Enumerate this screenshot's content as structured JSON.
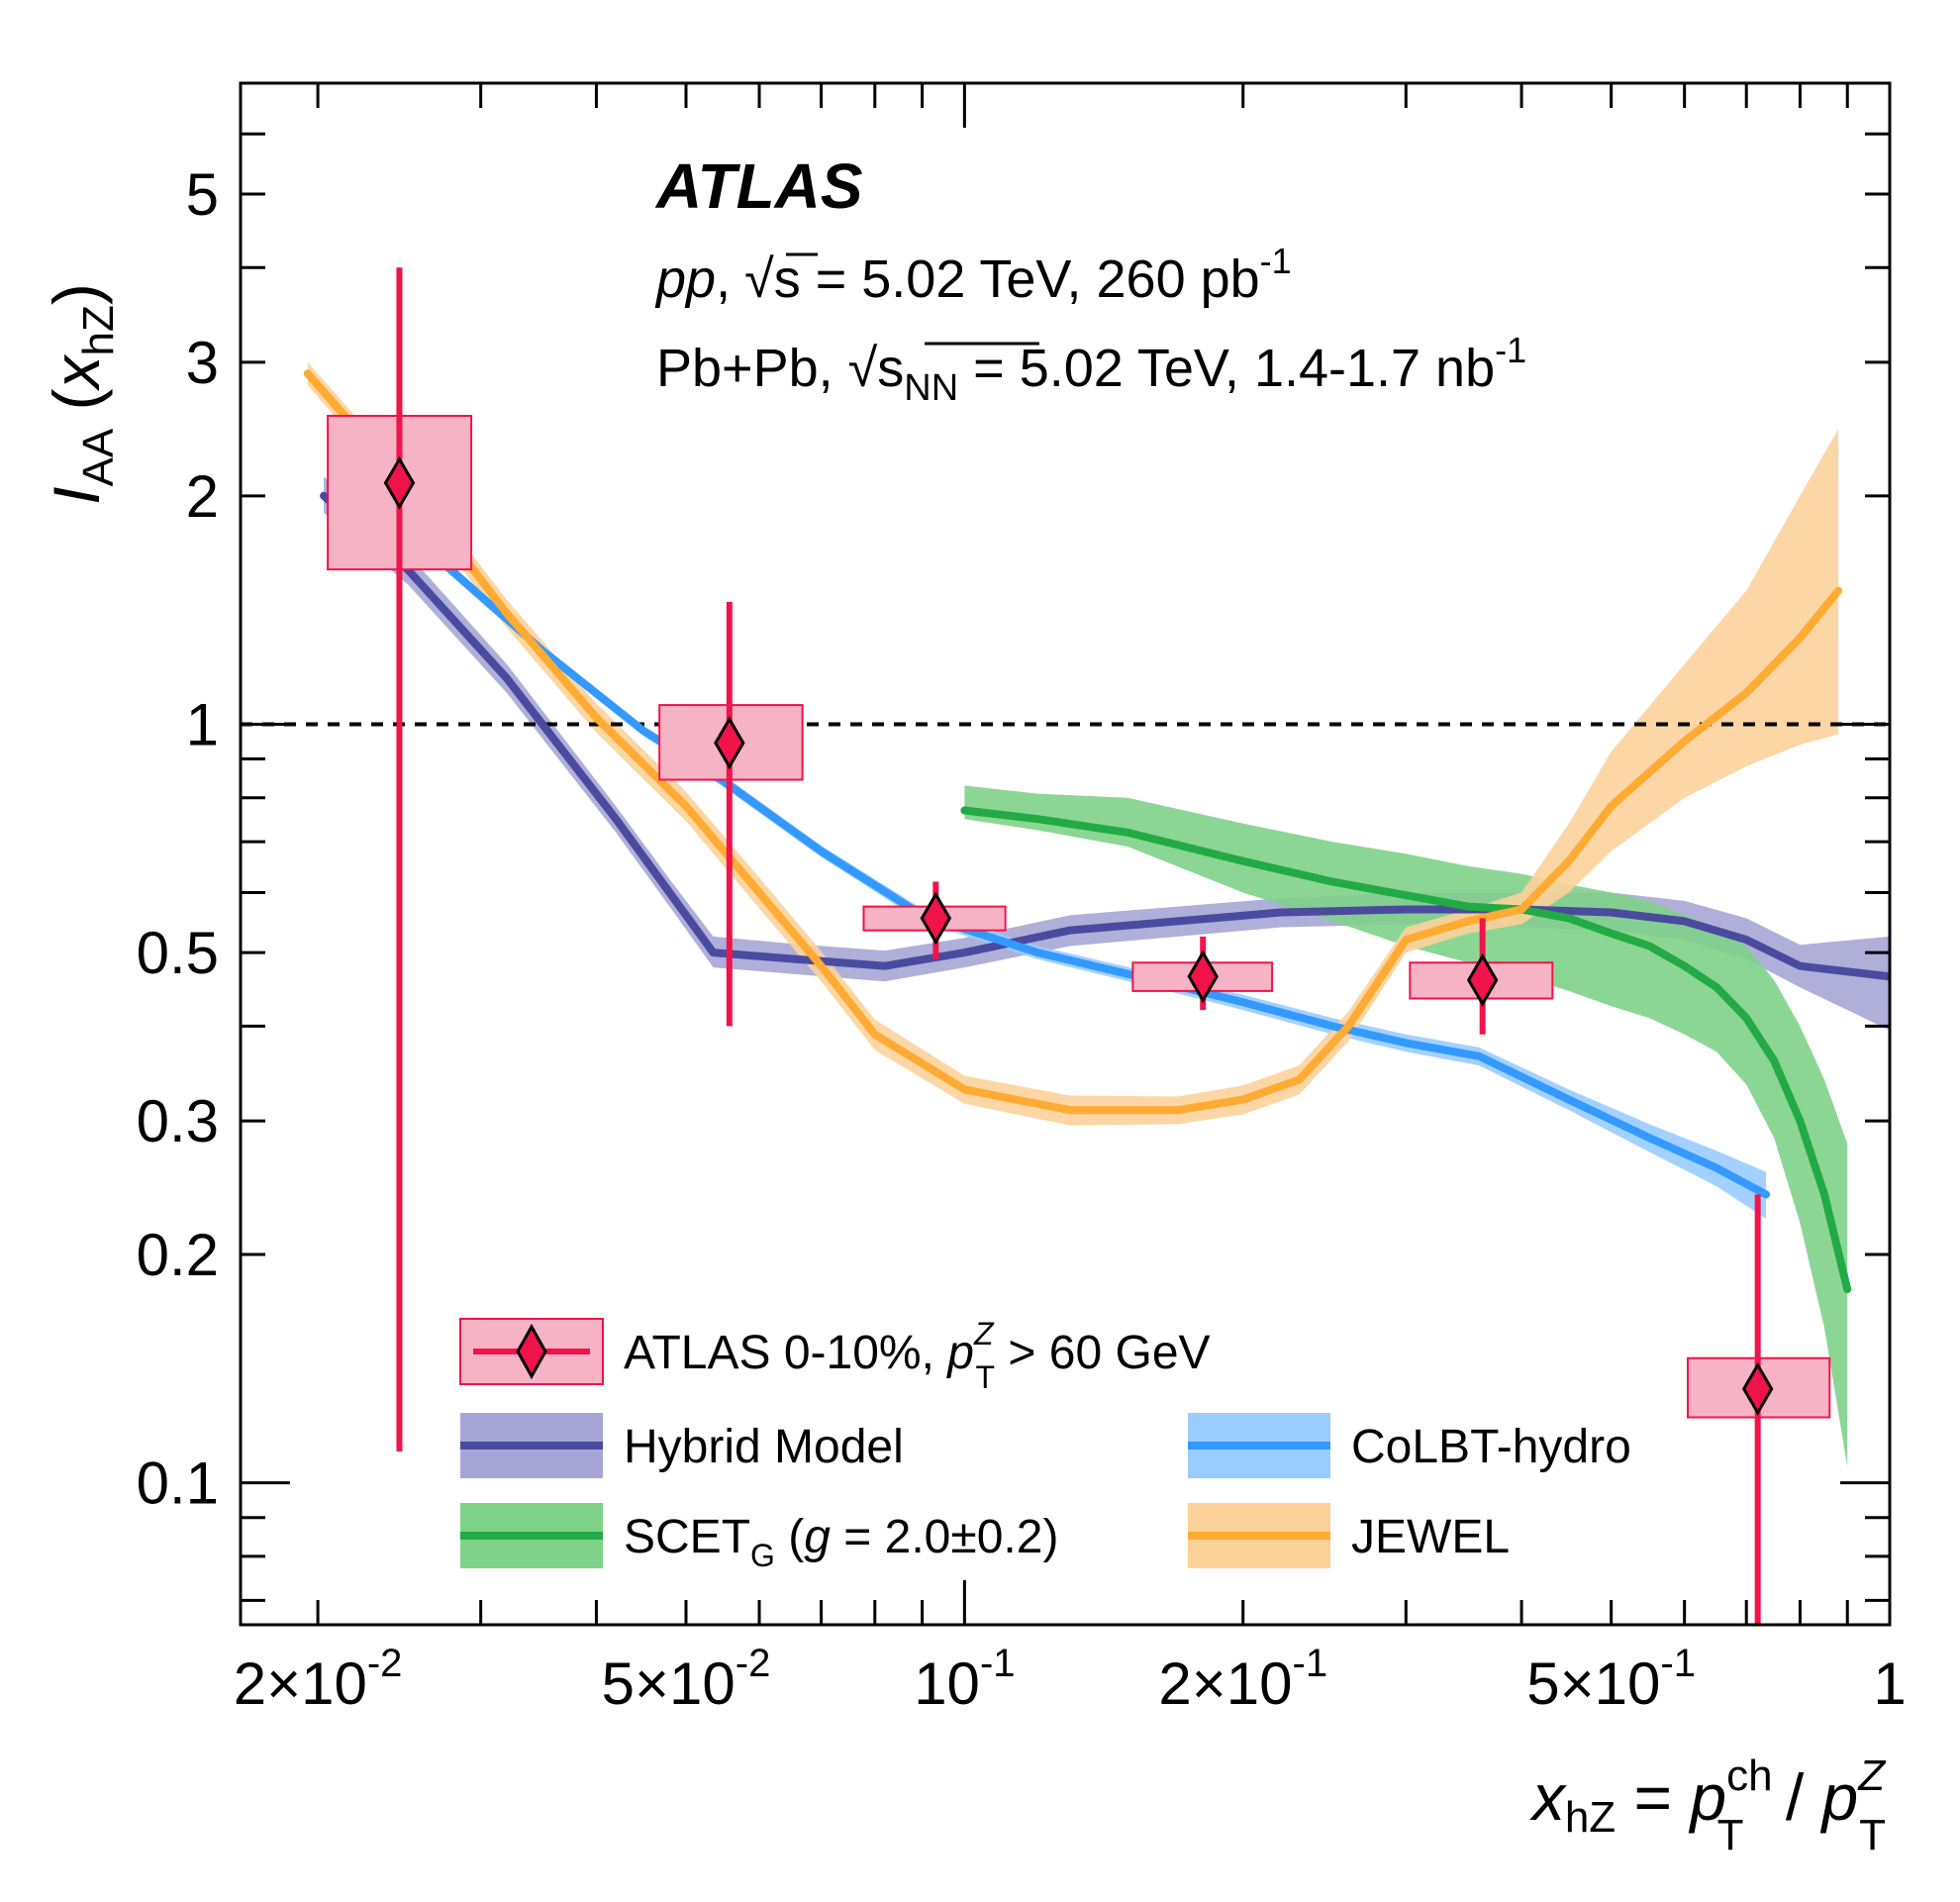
{
  "colors": {
    "atlas_point": "#f0144a",
    "atlas_box_fill": "#f7b3c6",
    "hybrid_line": "#4a4a9e",
    "hybrid_band": "#a6a6d6",
    "colbt_line": "#3399ff",
    "colbt_band": "#99ccff",
    "scet_line": "#22aa44",
    "scet_band": "#7fd28a",
    "jewel_line": "#ffaa33",
    "jewel_band": "#fcd29a"
  },
  "chart_data": {
    "type": "line",
    "x_scale": "log",
    "y_scale": "log",
    "xlim": [
      0.0165,
      1.0
    ],
    "ylim": [
      0.065,
      7.0
    ],
    "x_ticks": [
      {
        "value": 0.02,
        "label_main": "2×10",
        "label_sup": "-2"
      },
      {
        "value": 0.05,
        "label_main": "5×10",
        "label_sup": "-2"
      },
      {
        "value": 0.1,
        "label_main": "10",
        "label_sup": "-1"
      },
      {
        "value": 0.2,
        "label_main": "2×10",
        "label_sup": "-1"
      },
      {
        "value": 0.5,
        "label_main": "5×10",
        "label_sup": "-1"
      },
      {
        "value": 1.0,
        "label_main": "1",
        "label_sup": ""
      }
    ],
    "y_ticks": [
      {
        "value": 0.1,
        "label": "0.1"
      },
      {
        "value": 0.2,
        "label": "0.2"
      },
      {
        "value": 0.3,
        "label": "0.3"
      },
      {
        "value": 0.5,
        "label": "0.5"
      },
      {
        "value": 1,
        "label": "1"
      },
      {
        "value": 2,
        "label": "2"
      },
      {
        "value": 3,
        "label": "3"
      },
      {
        "value": 5,
        "label": "5"
      }
    ],
    "reference_line": {
      "y": 1.0,
      "style": "dashed"
    },
    "xlabel": {
      "x": "x",
      "x_sub": "hZ",
      "eq": " = ",
      "p": "p",
      "p_sub": "T",
      "p_sup": "ch",
      "slash": " / ",
      "p2": "p",
      "p2_sub": "T",
      "p2_sup": "Z"
    },
    "ylabel": {
      "I": "I",
      "I_sub": "AA",
      "open": " (",
      "x": "x",
      "x_sub": "hZ",
      "close": ")"
    },
    "annotations": {
      "experiment": "ATLAS",
      "line1": {
        "pp": "pp",
        "comma": ",",
        "s": "s",
        "rest": " = 5.02 TeV, 260 pb",
        "sup": "-1"
      },
      "line2": {
        "start": "Pb+Pb, ",
        "s": "s",
        "s_sub": "NN",
        "rest": " = 5.02 TeV, 1.4-1.7 nb",
        "sup": "-1"
      }
    },
    "atlas_data": [
      {
        "x": 0.0245,
        "y": 2.08,
        "y_low": 0.11,
        "y_high": 4.0,
        "sys_low": 1.6,
        "sys_high": 2.55,
        "x_low": 0.0205,
        "x_high": 0.0293
      },
      {
        "x": 0.0557,
        "y": 0.945,
        "y_low": 0.4,
        "y_high": 1.45,
        "sys_low": 0.845,
        "sys_high": 1.06,
        "x_low": 0.0468,
        "x_high": 0.0668
      },
      {
        "x": 0.0931,
        "y": 0.555,
        "y_low": 0.49,
        "y_high": 0.62,
        "sys_low": 0.535,
        "sys_high": 0.575,
        "x_low": 0.0778,
        "x_high": 0.1107
      },
      {
        "x": 0.181,
        "y": 0.465,
        "y_low": 0.42,
        "y_high": 0.525,
        "sys_low": 0.445,
        "sys_high": 0.485,
        "x_low": 0.152,
        "x_high": 0.215
      },
      {
        "x": 0.363,
        "y": 0.46,
        "y_low": 0.39,
        "y_high": 0.555,
        "sys_low": 0.435,
        "sys_high": 0.485,
        "x_low": 0.303,
        "x_high": 0.432
      },
      {
        "x": 0.72,
        "y": 0.133,
        "y_low": 0.065,
        "y_high": 0.24,
        "sys_low": 0.122,
        "sys_high": 0.146,
        "x_low": 0.605,
        "x_high": 0.861
      }
    ],
    "series": [
      {
        "name": "Hybrid Model",
        "key": "hybrid",
        "x": [
          0.0203,
          0.025,
          0.032,
          0.042,
          0.048,
          0.0535,
          0.066,
          0.082,
          0.1,
          0.13,
          0.17,
          0.22,
          0.3,
          0.4,
          0.5,
          0.6,
          0.7,
          0.8,
          1.0
        ],
        "y": [
          2.0,
          1.6,
          1.15,
          0.75,
          0.6,
          0.5,
          0.49,
          0.48,
          0.5,
          0.535,
          0.55,
          0.565,
          0.57,
          0.57,
          0.565,
          0.55,
          0.52,
          0.48,
          0.465
        ],
        "band_low": [
          1.9,
          1.53,
          1.1,
          0.72,
          0.575,
          0.478,
          0.468,
          0.458,
          0.478,
          0.51,
          0.525,
          0.54,
          0.545,
          0.54,
          0.535,
          0.52,
          0.49,
          0.45,
          0.395
        ],
        "band_high": [
          2.12,
          1.68,
          1.2,
          0.78,
          0.625,
          0.525,
          0.513,
          0.503,
          0.523,
          0.56,
          0.575,
          0.59,
          0.6,
          0.6,
          0.6,
          0.585,
          0.555,
          0.512,
          0.525
        ]
      },
      {
        "name": "CoLBT-hydro",
        "key": "colbt",
        "x": [
          0.026,
          0.035,
          0.045,
          0.055,
          0.07,
          0.09,
          0.12,
          0.16,
          0.2,
          0.25,
          0.3,
          0.36,
          0.45,
          0.55,
          0.65,
          0.735
        ],
        "y": [
          1.72,
          1.25,
          0.98,
          0.84,
          0.68,
          0.56,
          0.5,
          0.46,
          0.43,
          0.4,
          0.38,
          0.365,
          0.32,
          0.285,
          0.26,
          0.24
        ],
        "band_low": [
          1.69,
          1.23,
          0.965,
          0.825,
          0.668,
          0.549,
          0.49,
          0.45,
          0.42,
          0.39,
          0.37,
          0.355,
          0.31,
          0.273,
          0.246,
          0.223
        ],
        "band_high": [
          1.75,
          1.27,
          0.995,
          0.855,
          0.692,
          0.571,
          0.51,
          0.47,
          0.44,
          0.41,
          0.39,
          0.375,
          0.33,
          0.297,
          0.274,
          0.257
        ]
      },
      {
        "name": "SCET",
        "name_sub": "G",
        "name_suffix": " (",
        "name_g": "g",
        "name_val": " = 2.0±0.2)",
        "key": "scet",
        "x": [
          0.1,
          0.12,
          0.15,
          0.2,
          0.25,
          0.3,
          0.35,
          0.4,
          0.45,
          0.5,
          0.55,
          0.6,
          0.65,
          0.7,
          0.75,
          0.8,
          0.85,
          0.9
        ],
        "y": [
          0.77,
          0.75,
          0.72,
          0.66,
          0.62,
          0.595,
          0.575,
          0.57,
          0.555,
          0.53,
          0.51,
          0.48,
          0.45,
          0.41,
          0.36,
          0.3,
          0.24,
          0.18
        ],
        "band_low": [
          0.75,
          0.725,
          0.69,
          0.6,
          0.55,
          0.51,
          0.485,
          0.465,
          0.445,
          0.425,
          0.41,
          0.39,
          0.37,
          0.335,
          0.285,
          0.22,
          0.16,
          0.105
        ],
        "band_high": [
          0.83,
          0.81,
          0.8,
          0.74,
          0.7,
          0.675,
          0.65,
          0.635,
          0.615,
          0.6,
          0.585,
          0.56,
          0.54,
          0.51,
          0.46,
          0.4,
          0.34,
          0.28
        ]
      },
      {
        "name": "JEWEL",
        "key": "jewel",
        "x": [
          0.0195,
          0.022,
          0.026,
          0.032,
          0.04,
          0.05,
          0.06,
          0.07,
          0.08,
          0.1,
          0.13,
          0.17,
          0.2,
          0.23,
          0.26,
          0.3,
          0.35,
          0.4,
          0.45,
          0.5,
          0.6,
          0.7,
          0.8,
          0.88
        ],
        "y": [
          2.9,
          2.45,
          1.95,
          1.4,
          1.02,
          0.78,
          0.6,
          0.48,
          0.39,
          0.33,
          0.31,
          0.31,
          0.32,
          0.34,
          0.4,
          0.52,
          0.55,
          0.57,
          0.66,
          0.78,
          0.95,
          1.1,
          1.3,
          1.5
        ],
        "band_low": [
          2.8,
          2.36,
          1.87,
          1.34,
          0.975,
          0.745,
          0.572,
          0.458,
          0.372,
          0.316,
          0.296,
          0.297,
          0.306,
          0.325,
          0.382,
          0.5,
          0.53,
          0.545,
          0.6,
          0.68,
          0.8,
          0.88,
          0.94,
          0.97
        ],
        "band_high": [
          3.0,
          2.54,
          2.03,
          1.46,
          1.065,
          0.815,
          0.628,
          0.502,
          0.408,
          0.344,
          0.324,
          0.323,
          0.334,
          0.355,
          0.418,
          0.54,
          0.57,
          0.6,
          0.74,
          0.92,
          1.2,
          1.5,
          2.0,
          2.45
        ]
      }
    ],
    "legend": {
      "atlas": {
        "text": "ATLAS 0-10%, ",
        "p": "p",
        "p_sub": "T",
        "p_sup": "Z",
        "cut": " > 60 GeV"
      },
      "placement": "bottom-center"
    }
  }
}
